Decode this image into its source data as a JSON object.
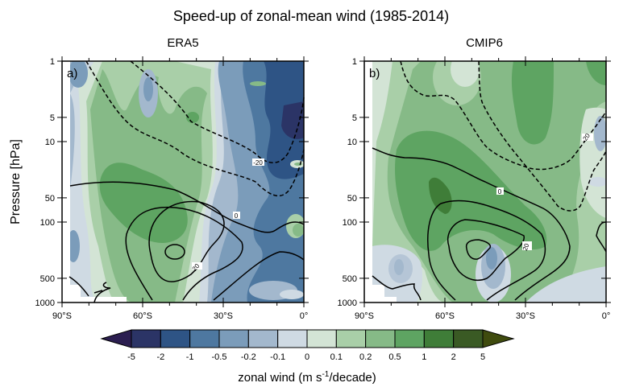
{
  "chart_data": {
    "type": "heatmap",
    "subtype": "filled contour with line contours",
    "title": "Speed-up of zonal-mean wind (1985-2014)",
    "ylabel": "Pressure [hPa]",
    "yscale": "log",
    "ylim": [
      1000,
      1
    ],
    "yticks": [
      1,
      5,
      10,
      50,
      100,
      500,
      1000
    ],
    "ytick_labels": [
      "1",
      "5",
      "10",
      "50",
      "100",
      "500",
      "1000"
    ],
    "xlim": [
      -90,
      0
    ],
    "xticks": [
      -90,
      -60,
      -30,
      0
    ],
    "xtick_labels": [
      "90°S",
      "60°S",
      "30°S",
      "0°"
    ],
    "panels": [
      {
        "label": "a)",
        "title": "ERA5",
        "contour_labels": [
          "-20",
          "0",
          "20"
        ]
      },
      {
        "label": "b)",
        "title": "CMIP6",
        "contour_labels": [
          "-20",
          "0",
          "20"
        ]
      }
    ],
    "colorbar": {
      "levels": [
        "-5",
        "-2",
        "-1",
        "-0.5",
        "-0.2",
        "-0.1",
        "0",
        "0.1",
        "0.2",
        "0.5",
        "1",
        "2",
        "5"
      ],
      "colors": [
        "#2b1e50",
        "#2b3466",
        "#2e5485",
        "#4e78a0",
        "#7b9cba",
        "#a3b8cd",
        "#cfdae3",
        "#d3e4d5",
        "#a9cfa8",
        "#86ba87",
        "#5ea462",
        "#3f7d38",
        "#3a5a24",
        "#3f4b0e"
      ],
      "label_main": "zonal wind (m s",
      "label_sup": "-1",
      "label_end": "/decade)",
      "extend": "both",
      "orientation": "horizontal"
    },
    "grid": false
  }
}
